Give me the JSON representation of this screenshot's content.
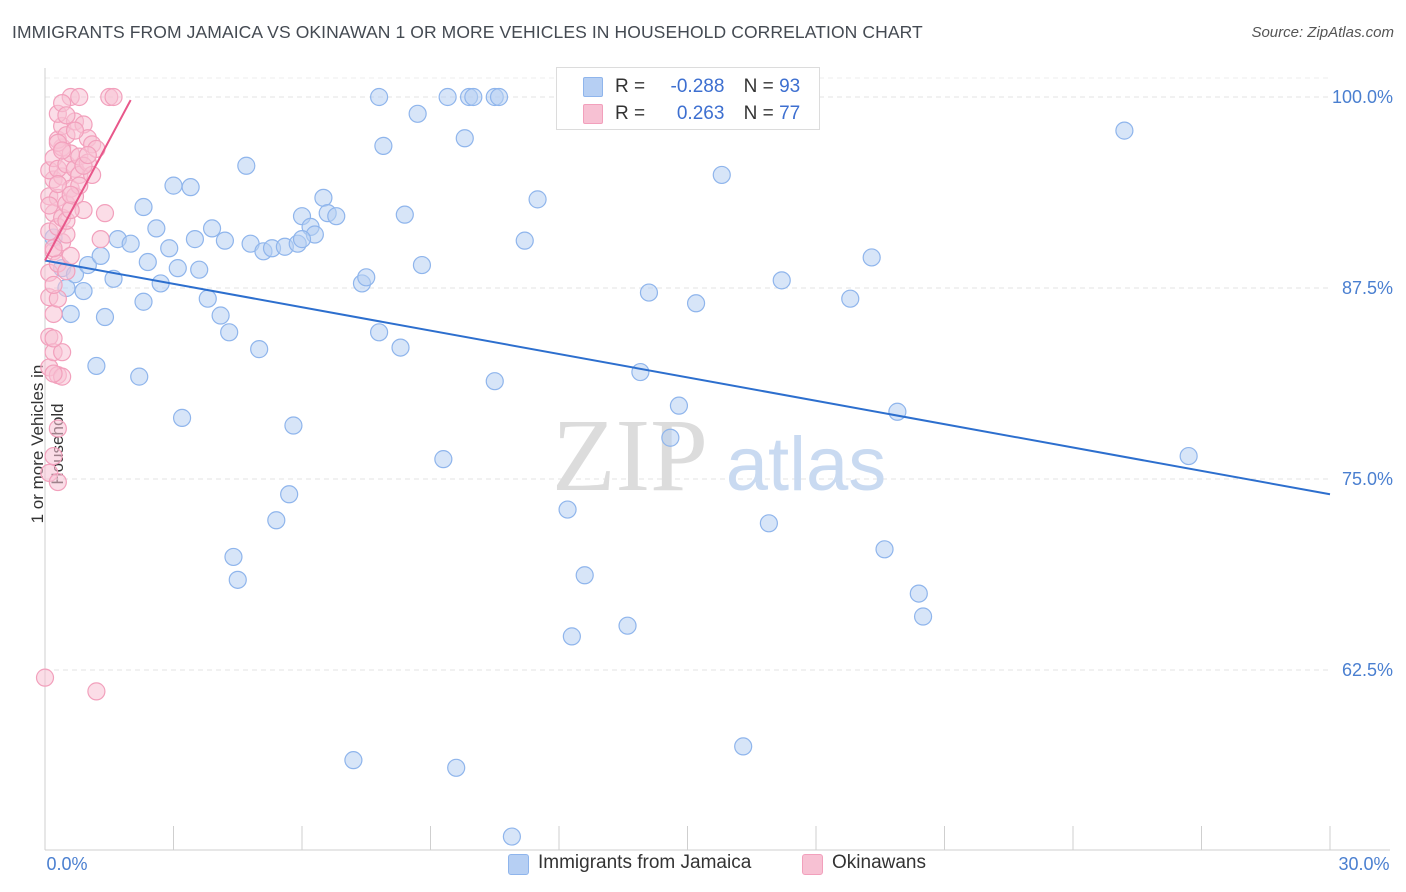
{
  "header": {
    "title": "IMMIGRANTS FROM JAMAICA VS OKINAWAN 1 OR MORE VEHICLES IN HOUSEHOLD CORRELATION CHART",
    "source": "Source: ZipAtlas.com"
  },
  "watermark": {
    "zip": "ZIP",
    "atlas": "atlas"
  },
  "legend": {
    "rows": [
      {
        "r_label": "R =",
        "r_value": "-0.288",
        "n_label": "N =",
        "n_value": "93"
      },
      {
        "r_label": "R =",
        "r_value": "0.263",
        "n_label": "N =",
        "n_value": "77"
      }
    ]
  },
  "colors": {
    "blue": "#8fb5ec",
    "blue_fill": "#b6cff3",
    "blue_line": "#2d6fce",
    "pink": "#f2a0bc",
    "pink_fill": "#f7c1d3",
    "pink_line": "#e8578a",
    "axis_label": "#4a7fd0"
  },
  "chart_data": {
    "type": "scatter",
    "title": "IMMIGRANTS FROM JAMAICA VS OKINAWAN 1 OR MORE VEHICLES IN HOUSEHOLD CORRELATION CHART",
    "xlabel": "",
    "ylabel": "1 or more Vehicles in Household",
    "xlim": [
      0,
      30
    ],
    "ylim": [
      51.5,
      101
    ],
    "x_tick_labels": [
      "0.0%",
      "30.0%"
    ],
    "y_ticks": [
      62.5,
      75.0,
      87.5,
      100.0
    ],
    "y_tick_labels": [
      "62.5%",
      "75.0%",
      "87.5%",
      "100.0%"
    ],
    "grid": "horizontal dashed",
    "series": [
      {
        "name": "Immigrants from Jamaica",
        "color": "blue",
        "r": -0.288,
        "n": 93,
        "trend": {
          "x": [
            0.0,
            30.0
          ],
          "y": [
            89.3,
            74.0
          ]
        },
        "points": [
          [
            0.2,
            90.8
          ],
          [
            0.4,
            88.8
          ],
          [
            0.5,
            87.5
          ],
          [
            0.6,
            85.8
          ],
          [
            0.7,
            88.4
          ],
          [
            0.9,
            87.3
          ],
          [
            1.0,
            89.0
          ],
          [
            1.2,
            82.4
          ],
          [
            1.3,
            89.6
          ],
          [
            1.4,
            85.6
          ],
          [
            1.6,
            88.1
          ],
          [
            1.7,
            90.7
          ],
          [
            2.0,
            90.4
          ],
          [
            2.2,
            81.7
          ],
          [
            2.3,
            92.8
          ],
          [
            2.4,
            89.2
          ],
          [
            2.6,
            91.4
          ],
          [
            2.7,
            87.8
          ],
          [
            2.9,
            90.1
          ],
          [
            3.0,
            94.2
          ],
          [
            3.1,
            88.8
          ],
          [
            3.2,
            79.0
          ],
          [
            3.4,
            94.1
          ],
          [
            3.5,
            90.7
          ],
          [
            3.6,
            88.7
          ],
          [
            3.8,
            86.8
          ],
          [
            3.9,
            91.4
          ],
          [
            4.1,
            85.7
          ],
          [
            4.2,
            90.6
          ],
          [
            4.3,
            84.6
          ],
          [
            4.4,
            69.9
          ],
          [
            4.5,
            68.4
          ],
          [
            4.7,
            95.5
          ],
          [
            4.8,
            90.4
          ],
          [
            5.0,
            83.5
          ],
          [
            5.1,
            89.9
          ],
          [
            5.3,
            90.1
          ],
          [
            5.4,
            72.3
          ],
          [
            5.6,
            90.2
          ],
          [
            5.7,
            74.0
          ],
          [
            5.8,
            78.5
          ],
          [
            5.9,
            90.4
          ],
          [
            6.0,
            92.2
          ],
          [
            6.2,
            91.5
          ],
          [
            6.3,
            91.0
          ],
          [
            6.5,
            93.4
          ],
          [
            6.6,
            92.4
          ],
          [
            6.8,
            92.2
          ],
          [
            7.2,
            56.6
          ],
          [
            7.4,
            87.8
          ],
          [
            7.5,
            88.2
          ],
          [
            7.8,
            100.0
          ],
          [
            7.8,
            84.6
          ],
          [
            7.9,
            96.8
          ],
          [
            8.3,
            83.6
          ],
          [
            8.4,
            92.3
          ],
          [
            8.7,
            98.9
          ],
          [
            8.8,
            89.0
          ],
          [
            9.3,
            76.3
          ],
          [
            9.4,
            100.0
          ],
          [
            9.6,
            56.1
          ],
          [
            9.8,
            97.3
          ],
          [
            9.9,
            100.0
          ],
          [
            10.0,
            100.0
          ],
          [
            10.5,
            100.0
          ],
          [
            10.6,
            100.0
          ],
          [
            10.5,
            81.4
          ],
          [
            10.9,
            51.6
          ],
          [
            11.2,
            90.6
          ],
          [
            11.5,
            93.3
          ],
          [
            12.2,
            73.0
          ],
          [
            12.3,
            64.7
          ],
          [
            12.6,
            68.7
          ],
          [
            13.6,
            65.4
          ],
          [
            13.9,
            82.0
          ],
          [
            14.1,
            87.2
          ],
          [
            14.6,
            77.7
          ],
          [
            14.8,
            79.8
          ],
          [
            15.2,
            86.5
          ],
          [
            15.8,
            94.9
          ],
          [
            16.3,
            57.5
          ],
          [
            16.9,
            72.1
          ],
          [
            17.2,
            88.0
          ],
          [
            18.8,
            86.8
          ],
          [
            19.3,
            89.5
          ],
          [
            19.6,
            70.4
          ],
          [
            19.9,
            79.4
          ],
          [
            20.4,
            67.5
          ],
          [
            20.5,
            66.0
          ],
          [
            25.2,
            97.8
          ],
          [
            26.7,
            76.5
          ],
          [
            2.3,
            86.6
          ],
          [
            6.0,
            90.7
          ]
        ]
      },
      {
        "name": "Okinawans",
        "color": "pink",
        "r": 0.263,
        "n": 77,
        "trend": {
          "x": [
            0.0,
            2.0
          ],
          "y": [
            89.3,
            99.8
          ]
        },
        "points": [
          [
            0.0,
            62.0
          ],
          [
            0.1,
            75.4
          ],
          [
            0.1,
            84.3
          ],
          [
            0.1,
            82.3
          ],
          [
            0.1,
            86.9
          ],
          [
            0.2,
            85.8
          ],
          [
            0.1,
            88.5
          ],
          [
            0.2,
            89.9
          ],
          [
            0.1,
            91.2
          ],
          [
            0.2,
            92.4
          ],
          [
            0.1,
            93.5
          ],
          [
            0.2,
            94.6
          ],
          [
            0.1,
            95.2
          ],
          [
            0.2,
            96.0
          ],
          [
            0.2,
            76.5
          ],
          [
            0.3,
            78.3
          ],
          [
            0.3,
            74.8
          ],
          [
            0.3,
            81.8
          ],
          [
            0.2,
            83.3
          ],
          [
            0.3,
            86.8
          ],
          [
            0.2,
            87.7
          ],
          [
            0.3,
            89.1
          ],
          [
            0.4,
            90.5
          ],
          [
            0.3,
            91.5
          ],
          [
            0.4,
            92.1
          ],
          [
            0.3,
            93.4
          ],
          [
            0.4,
            94.8
          ],
          [
            0.3,
            95.3
          ],
          [
            0.4,
            96.7
          ],
          [
            0.3,
            97.2
          ],
          [
            0.4,
            98.1
          ],
          [
            0.3,
            98.9
          ],
          [
            0.5,
            88.6
          ],
          [
            0.5,
            91.0
          ],
          [
            0.5,
            93.0
          ],
          [
            0.6,
            94.0
          ],
          [
            0.5,
            95.6
          ],
          [
            0.6,
            96.3
          ],
          [
            0.5,
            97.5
          ],
          [
            0.6,
            100.0
          ],
          [
            0.7,
            98.4
          ],
          [
            0.7,
            95.3
          ],
          [
            0.7,
            93.5
          ],
          [
            0.8,
            96.1
          ],
          [
            0.8,
            100.0
          ],
          [
            0.9,
            98.2
          ],
          [
            0.8,
            94.9
          ],
          [
            0.9,
            92.6
          ],
          [
            1.0,
            95.7
          ],
          [
            1.0,
            97.3
          ],
          [
            1.1,
            94.9
          ],
          [
            1.1,
            96.9
          ],
          [
            1.2,
            96.6
          ],
          [
            1.3,
            90.7
          ],
          [
            1.4,
            92.4
          ],
          [
            1.5,
            100.0
          ],
          [
            1.6,
            100.0
          ],
          [
            1.2,
            61.1
          ],
          [
            0.4,
            81.7
          ],
          [
            0.4,
            83.3
          ],
          [
            0.2,
            84.2
          ],
          [
            0.6,
            89.6
          ],
          [
            0.5,
            91.9
          ],
          [
            0.2,
            90.1
          ],
          [
            0.3,
            97.0
          ],
          [
            0.4,
            99.6
          ],
          [
            0.7,
            97.8
          ],
          [
            0.9,
            95.5
          ],
          [
            0.6,
            92.6
          ],
          [
            0.3,
            94.3
          ],
          [
            0.5,
            98.8
          ],
          [
            0.8,
            94.2
          ],
          [
            1.0,
            96.2
          ],
          [
            0.1,
            92.9
          ],
          [
            0.2,
            81.9
          ],
          [
            0.4,
            96.5
          ],
          [
            0.6,
            93.6
          ]
        ]
      }
    ]
  },
  "bottom_legend": {
    "items": [
      {
        "label": "Immigrants from Jamaica"
      },
      {
        "label": "Okinawans"
      }
    ]
  }
}
